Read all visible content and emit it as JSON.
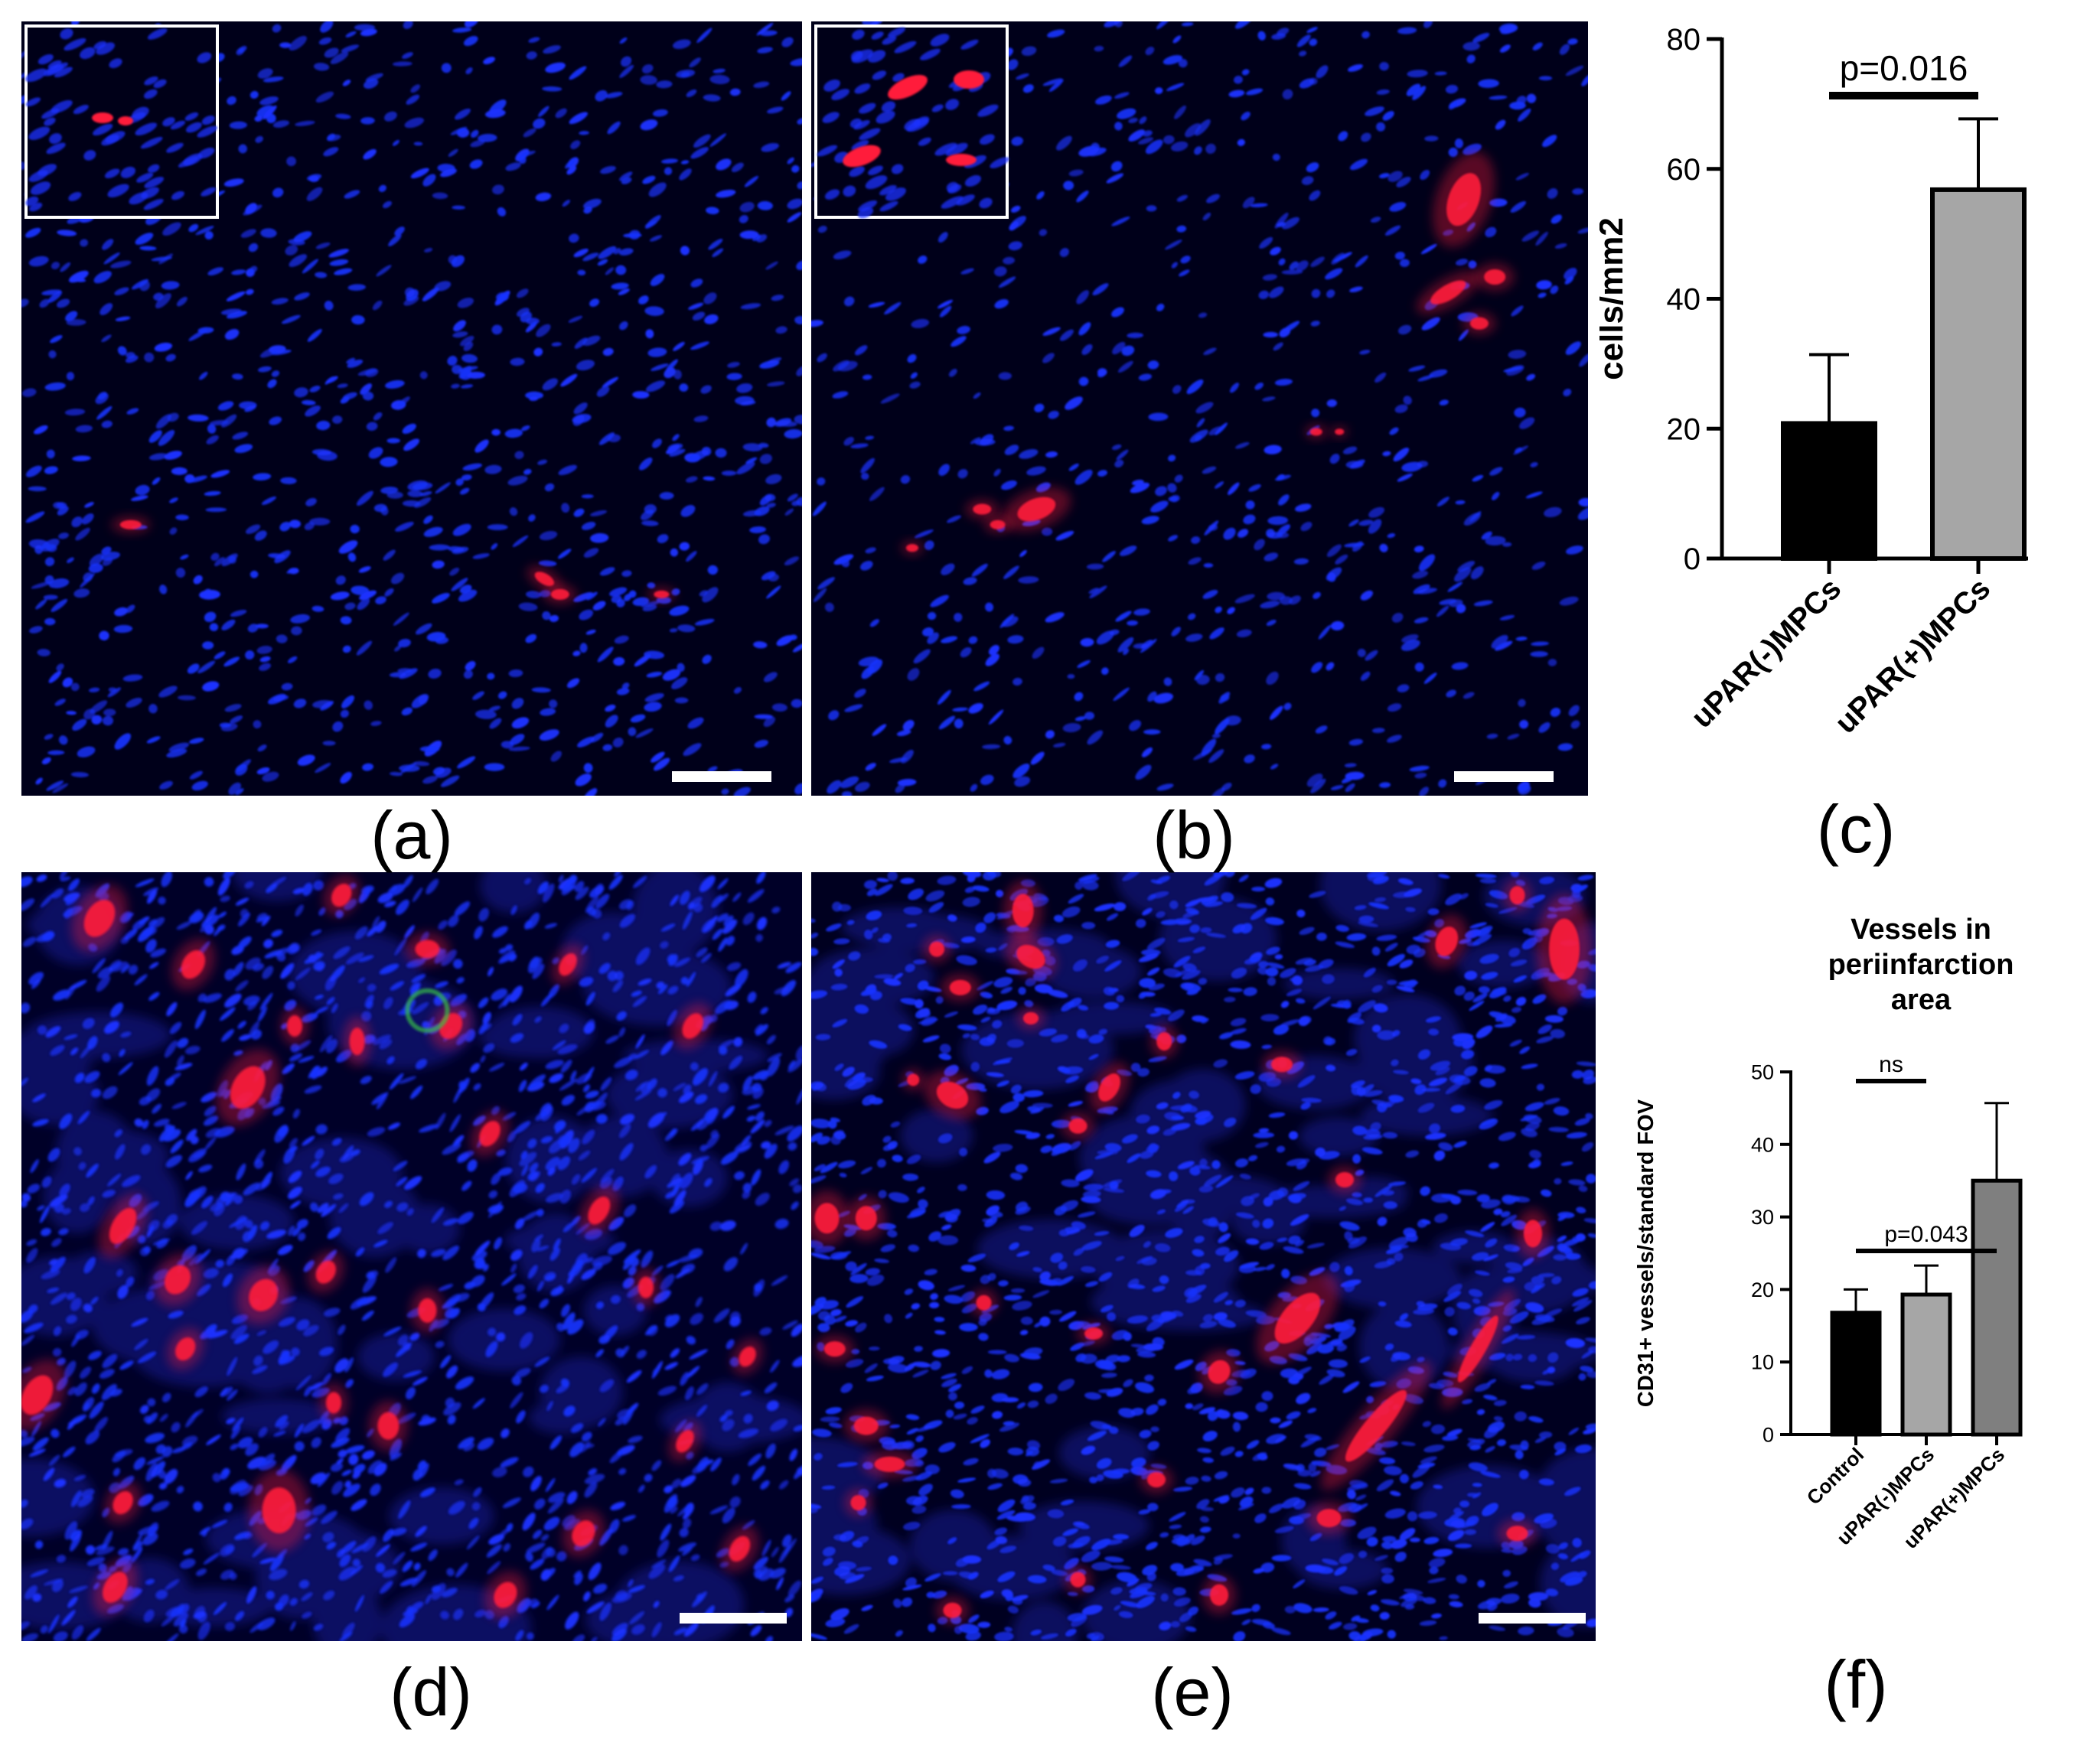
{
  "panel_labels": {
    "a": "(a)",
    "b": "(b)",
    "c": "(c)",
    "d": "(d)",
    "e": "(e)",
    "f": "(f)"
  },
  "colors": {
    "nuclei": "#1a33ff",
    "marker": "#ff1a3a",
    "cd31_green": "#39c04a",
    "background": "#00001a",
    "bar_black": "#000000",
    "bar_light_gray": "#a6a6a6",
    "bar_gray": "#7f7f7f"
  },
  "chart_data": [
    {
      "type": "bar",
      "title": "",
      "xlabel": "",
      "ylabel": "cells/mm2",
      "ylim": [
        0,
        80
      ],
      "yticks": [
        0,
        20,
        40,
        60,
        80
      ],
      "categories": [
        "uPAR(-)MPCs",
        "uPAR(+)MPCs"
      ],
      "values": [
        20.8,
        56.8
      ],
      "errors": [
        10.6,
        10.9
      ],
      "bar_colors": [
        "#000000",
        "#a6a6a6"
      ],
      "annotations": [
        {
          "from": "uPAR(-)MPCs",
          "to": "uPAR(+)MPCs",
          "text": "p=0.016"
        }
      ]
    },
    {
      "type": "bar",
      "title": "Vessels in periinfarction area",
      "xlabel": "",
      "ylabel": "CD31+ vessels/standard FOV",
      "ylim": [
        0,
        50
      ],
      "yticks": [
        0,
        10,
        20,
        30,
        40,
        50
      ],
      "categories": [
        "Control",
        "uPAR(-)MPCs",
        "uPAR(+)MPCs"
      ],
      "values": [
        16.8,
        19.3,
        35.0
      ],
      "errors": [
        3.2,
        4.0,
        10.7
      ],
      "bar_colors": [
        "#000000",
        "#a6a6a6",
        "#7f7f7f"
      ],
      "annotations": [
        {
          "from": "Control",
          "to": "uPAR(-)MPCs",
          "text": "ns"
        },
        {
          "from": "Control",
          "to": "uPAR(+)MPCs",
          "text": "p=0.043"
        }
      ]
    }
  ]
}
